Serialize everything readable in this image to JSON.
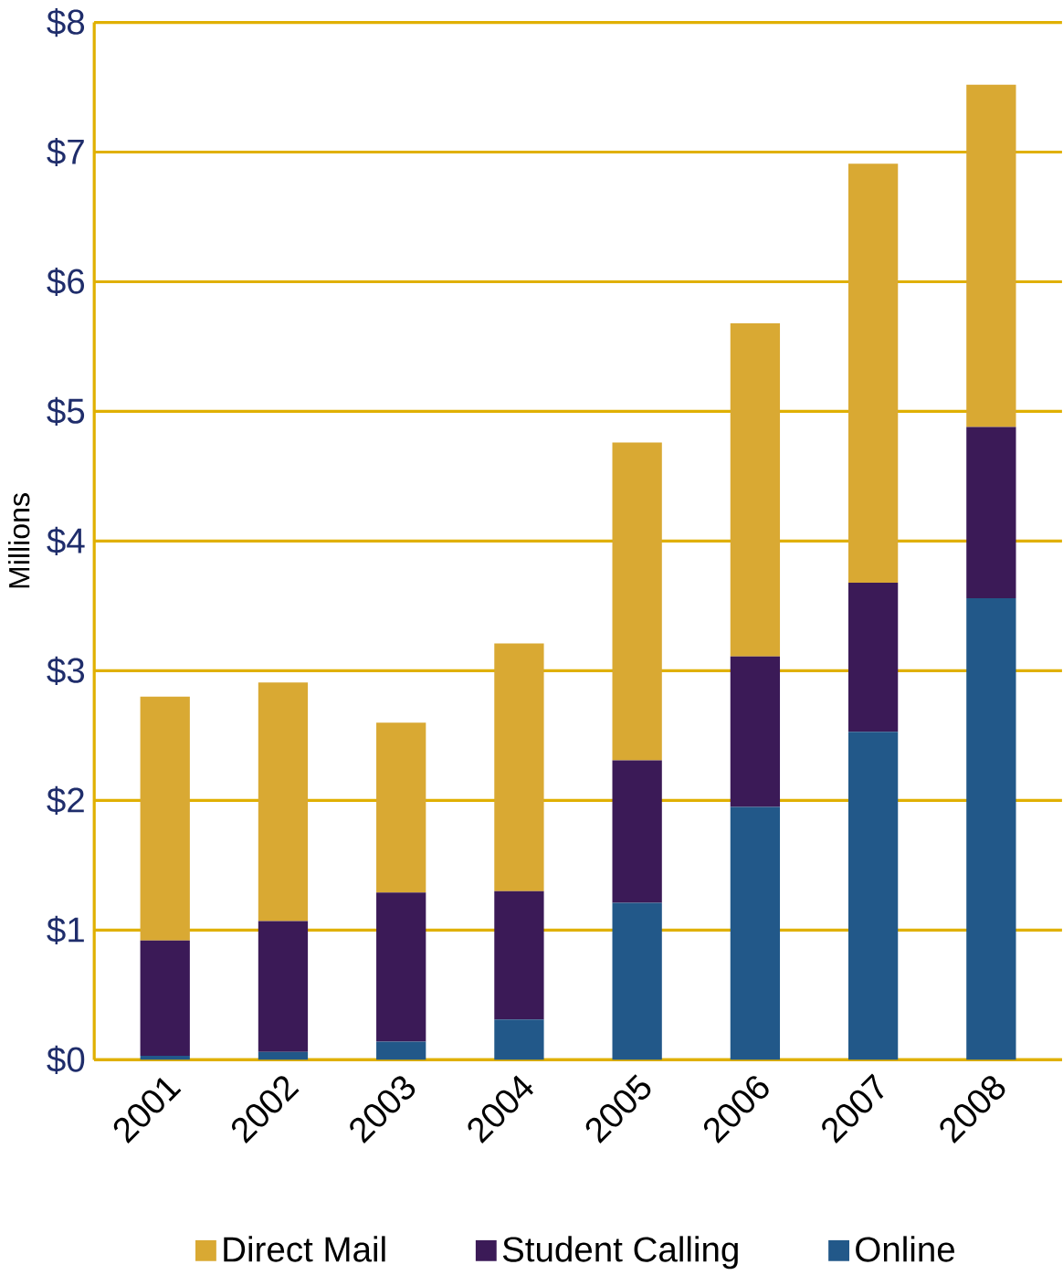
{
  "chart_data": {
    "type": "bar",
    "stacked": true,
    "ylabel": "Millions",
    "categories": [
      "2001",
      "2002",
      "2003",
      "2004",
      "2005",
      "2006",
      "2007",
      "2008"
    ],
    "series": [
      {
        "name": "Online",
        "color": "#225889",
        "values": [
          0.03,
          0.06,
          0.14,
          0.31,
          1.21,
          1.95,
          2.53,
          3.56
        ]
      },
      {
        "name": "Student Calling",
        "color": "#3b1a57",
        "values": [
          0.89,
          1.01,
          1.15,
          0.99,
          1.1,
          1.16,
          1.15,
          1.32
        ]
      },
      {
        "name": "Direct Mail",
        "color": "#d9a933",
        "values": [
          1.88,
          1.84,
          1.31,
          1.91,
          2.45,
          2.57,
          3.23,
          2.64
        ]
      }
    ],
    "ylim": [
      0,
      8
    ],
    "yticks": [
      {
        "value": 0,
        "label": "$0"
      },
      {
        "value": 1,
        "label": "$1"
      },
      {
        "value": 2,
        "label": "$2"
      },
      {
        "value": 3,
        "label": "$3"
      },
      {
        "value": 4,
        "label": "$4"
      },
      {
        "value": 5,
        "label": "$5"
      },
      {
        "value": 6,
        "label": "$6"
      },
      {
        "value": 7,
        "label": "$7"
      },
      {
        "value": 8,
        "label": "$8"
      }
    ],
    "grid": "y",
    "legend": "bottom"
  }
}
